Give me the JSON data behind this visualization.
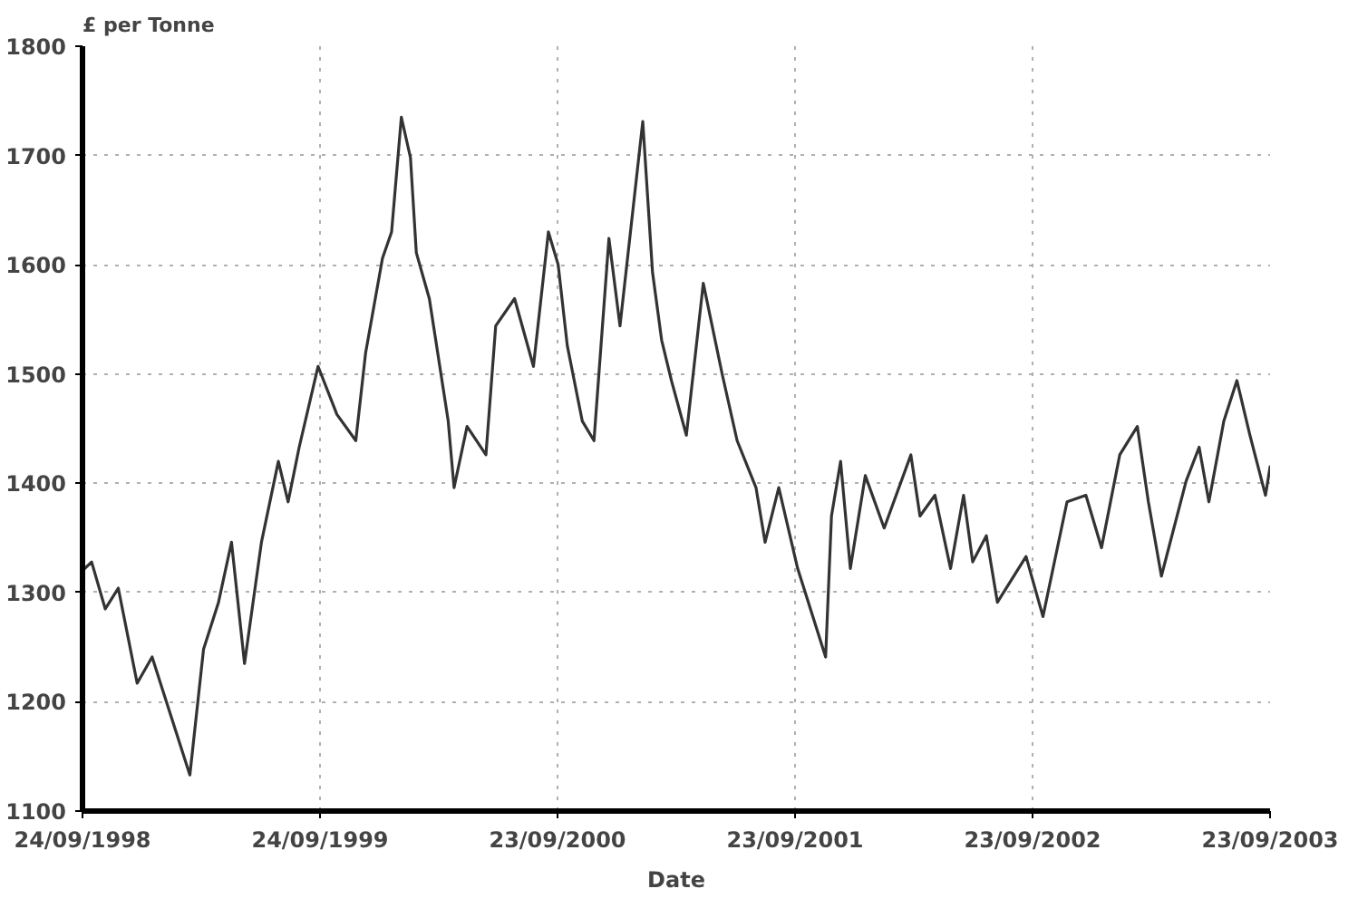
{
  "chart_data": {
    "type": "line",
    "ylabel": "£ per Tonne",
    "xlabel": "Date",
    "x": [
      "1998-09-24",
      "1998-10-08",
      "1998-10-29",
      "1998-11-18",
      "1998-12-17",
      "1999-01-09",
      "1999-02-01",
      "1999-03-08",
      "1999-03-29",
      "1999-04-21",
      "1999-05-11",
      "1999-05-31",
      "1999-06-26",
      "1999-07-22",
      "1999-08-06",
      "1999-08-23",
      "1999-09-21",
      "1999-10-20",
      "1999-11-18",
      "1999-12-03",
      "1999-12-29",
      "2000-01-12",
      "2000-01-27",
      "2000-02-10",
      "2000-02-19",
      "2000-03-10",
      "2000-04-08",
      "2000-04-17",
      "2000-05-07",
      "2000-06-05",
      "2000-06-20",
      "2000-07-19",
      "2000-08-17",
      "2000-09-09",
      "2000-09-24",
      "2000-10-08",
      "2000-10-31",
      "2000-11-18",
      "2000-12-11",
      "2000-12-28",
      "2001-02-01",
      "2001-02-16",
      "2001-03-02",
      "2001-03-17",
      "2001-04-09",
      "2001-05-05",
      "2001-06-03",
      "2001-06-26",
      "2001-07-25",
      "2001-08-08",
      "2001-08-29",
      "2001-09-27",
      "2001-11-09",
      "2001-11-18",
      "2001-12-02",
      "2001-12-17",
      "2002-01-09",
      "2002-02-07",
      "2002-03-20",
      "2002-04-03",
      "2002-04-26",
      "2002-05-20",
      "2002-06-09",
      "2002-06-23",
      "2002-07-14",
      "2002-07-31",
      "2002-09-13",
      "2002-10-09",
      "2002-11-15",
      "2002-12-14",
      "2003-01-07",
      "2003-02-04",
      "2003-03-03",
      "2003-03-20",
      "2003-04-09",
      "2003-05-17",
      "2003-06-06",
      "2003-06-21",
      "2003-07-14",
      "2003-08-03",
      "2003-08-23",
      "2003-09-16",
      "2003-09-23"
    ],
    "series": [
      {
        "color": "#333333",
        "values": [
          1320,
          1328,
          1285,
          1304,
          1217,
          1241,
          1198,
          1133,
          1248,
          1291,
          1346,
          1235,
          1346,
          1420,
          1383,
          1433,
          1507,
          1463,
          1439,
          1519,
          1606,
          1630,
          1735,
          1698,
          1611,
          1569,
          1457,
          1396,
          1452,
          1426,
          1544,
          1569,
          1507,
          1630,
          1600,
          1526,
          1457,
          1439,
          1624,
          1544,
          1731,
          1593,
          1531,
          1494,
          1444,
          1583,
          1500,
          1439,
          1396,
          1346,
          1396,
          1322,
          1241,
          1370,
          1420,
          1322,
          1407,
          1359,
          1426,
          1370,
          1389,
          1322,
          1389,
          1328,
          1352,
          1291,
          1333,
          1278,
          1383,
          1389,
          1341,
          1426,
          1452,
          1383,
          1315,
          1402,
          1433,
          1383,
          1457,
          1494,
          1444,
          1389,
          1415
        ]
      }
    ],
    "xlim": [
      "1998-09-24",
      "2003-09-23"
    ],
    "xticks": [
      {
        "value": "1998-09-24",
        "label": "24/09/1998"
      },
      {
        "value": "1999-09-24",
        "label": "24/09/1999"
      },
      {
        "value": "2000-09-23",
        "label": "23/09/2000"
      },
      {
        "value": "2001-09-23",
        "label": "23/09/2001"
      },
      {
        "value": "2002-09-23",
        "label": "23/09/2002"
      },
      {
        "value": "2003-09-23",
        "label": "23/09/2003"
      }
    ],
    "ylim": [
      1100,
      1800
    ],
    "yticks": [
      1100,
      1200,
      1300,
      1400,
      1500,
      1600,
      1700,
      1800
    ],
    "grid": true,
    "marker": "none",
    "line_style": "solid"
  }
}
